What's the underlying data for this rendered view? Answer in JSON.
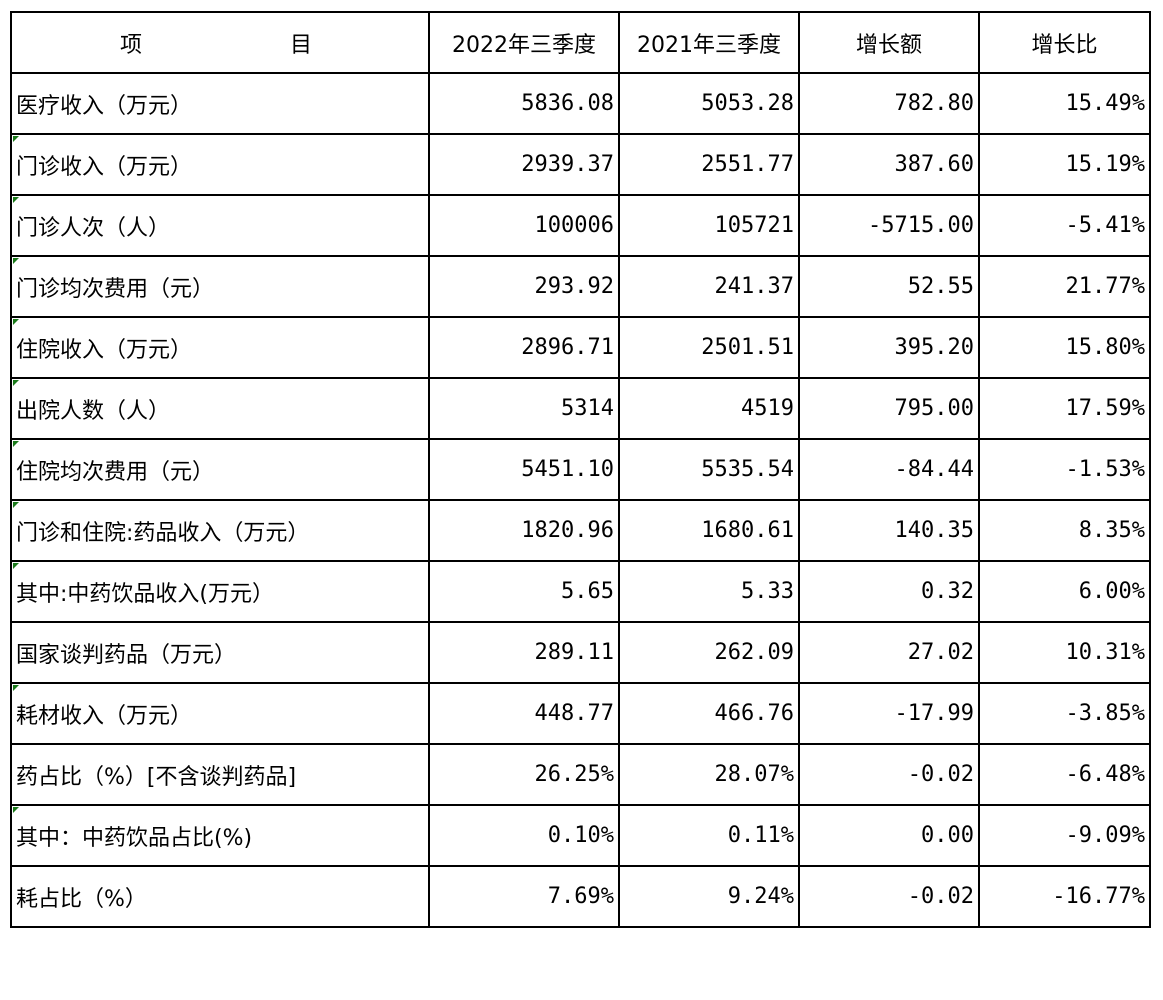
{
  "table": {
    "header": {
      "item_left": "项",
      "item_right": "目",
      "col_2022": "2022年三季度",
      "col_2021": "2021年三季度",
      "col_growth": "增长额",
      "col_ratio": "增长比"
    },
    "rows": [
      {
        "label": "医疗收入（万元）",
        "v2022": "5836.08",
        "v2021": "5053.28",
        "growth": "782.80",
        "ratio": "15.49%"
      },
      {
        "label": "门诊收入（万元）",
        "v2022": "2939.37",
        "v2021": "2551.77",
        "growth": "387.60",
        "ratio": "15.19%"
      },
      {
        "label": "门诊人次（人）",
        "v2022": "100006",
        "v2021": "105721",
        "growth": "-5715.00",
        "ratio": "-5.41%"
      },
      {
        "label": "门诊均次费用（元）",
        "v2022": "293.92",
        "v2021": "241.37",
        "growth": "52.55",
        "ratio": "21.77%"
      },
      {
        "label": "住院收入（万元）",
        "v2022": "2896.71",
        "v2021": "2501.51",
        "growth": "395.20",
        "ratio": "15.80%"
      },
      {
        "label": "出院人数（人）",
        "v2022": "5314",
        "v2021": "4519",
        "growth": "795.00",
        "ratio": "17.59%"
      },
      {
        "label": "住院均次费用（元）",
        "v2022": "5451.10",
        "v2021": "5535.54",
        "growth": "-84.44",
        "ratio": "-1.53%"
      },
      {
        "label": "门诊和住院:药品收入（万元）",
        "v2022": "1820.96",
        "v2021": "1680.61",
        "growth": "140.35",
        "ratio": "8.35%"
      },
      {
        "label": "其中:中药饮品收入(万元）",
        "v2022": "5.65",
        "v2021": "5.33",
        "growth": "0.32",
        "ratio": "6.00%"
      },
      {
        "label": "国家谈判药品（万元）",
        "v2022": "289.11",
        "v2021": "262.09",
        "growth": "27.02",
        "ratio": "10.31%"
      },
      {
        "label": "耗材收入（万元）",
        "v2022": "448.77",
        "v2021": "466.76",
        "growth": "-17.99",
        "ratio": "-3.85%"
      },
      {
        "label": "药占比（%）[不含谈判药品]",
        "v2022": "26.25%",
        "v2021": "28.07%",
        "growth": "-0.02",
        "ratio": "-6.48%"
      },
      {
        "label": "其中：中药饮品占比(%)",
        "v2022": "0.10%",
        "v2021": "0.11%",
        "growth": "0.00",
        "ratio": "-9.09%"
      },
      {
        "label": "耗占比（%）",
        "v2022": "7.69%",
        "v2021": "9.24%",
        "growth": "-0.02",
        "ratio": "-16.77%"
      }
    ]
  },
  "colors": {
    "border": "#000000",
    "comment_marker": "#1a7a1a"
  }
}
